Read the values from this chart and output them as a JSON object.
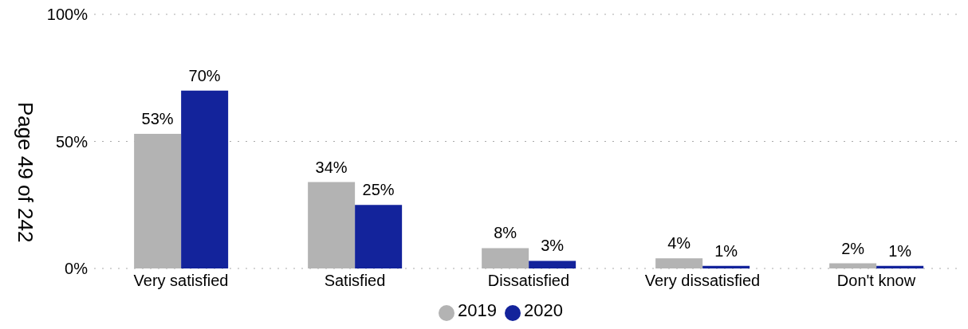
{
  "chart_data": {
    "type": "bar",
    "categories": [
      "Very satisfied",
      "Satisfied",
      "Dissatisfied",
      "Very dissatisfied",
      "Don't know"
    ],
    "series": [
      {
        "name": "2019",
        "color": "#b3b3b3",
        "values": [
          53,
          34,
          8,
          4,
          2
        ],
        "value_labels": [
          "53%",
          "34%",
          "8%",
          "4%",
          "2%"
        ]
      },
      {
        "name": "2020",
        "color": "#13239b",
        "values": [
          70,
          25,
          3,
          1,
          1
        ],
        "value_labels": [
          "70%",
          "25%",
          "3%",
          "1%",
          "1%"
        ]
      }
    ],
    "ylim": [
      0,
      100
    ],
    "yticks": [
      {
        "value": 0,
        "label": "0%"
      },
      {
        "value": 50,
        "label": "50%"
      },
      {
        "value": 100,
        "label": "100%"
      }
    ],
    "grid": "y",
    "legend": "bottom",
    "annotations": [
      "Page 49 of 242"
    ]
  }
}
